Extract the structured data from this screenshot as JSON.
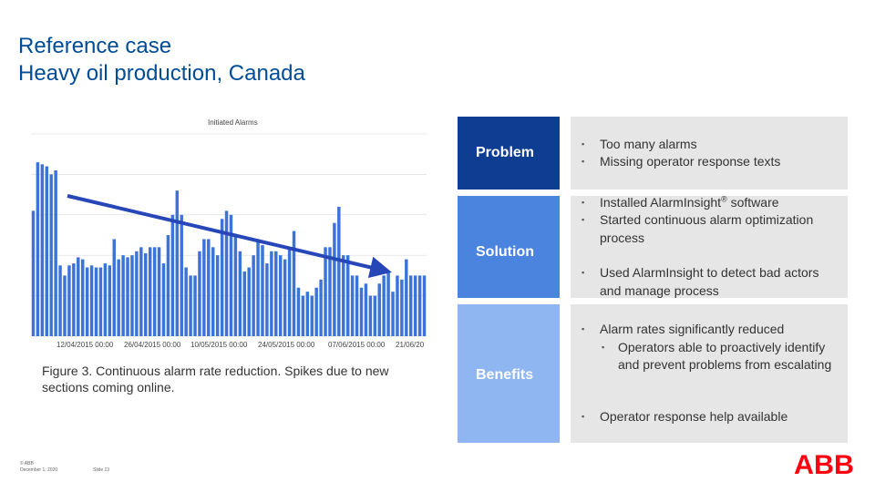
{
  "title": {
    "line1": "Reference case",
    "line2": "Heavy oil production, Canada"
  },
  "chart_data": {
    "type": "bar",
    "title": "Initiated Alarms",
    "tick_labels": [
      "12/04/2015 00:00",
      "26/04/2015 00:00",
      "10/05/2015 00:00",
      "24/05/2015 00:00",
      "07/06/2015 00:00",
      "21/06/20"
    ],
    "values": [
      62,
      86,
      85,
      84,
      80,
      82,
      35,
      30,
      35,
      36,
      39,
      38,
      34,
      35,
      34,
      34,
      36,
      35,
      48,
      38,
      40,
      39,
      40,
      42,
      44,
      41,
      44,
      44,
      44,
      36,
      50,
      60,
      72,
      60,
      34,
      30,
      30,
      42,
      48,
      48,
      44,
      40,
      58,
      62,
      60,
      50,
      42,
      32,
      34,
      40,
      48,
      45,
      36,
      42,
      42,
      40,
      38,
      44,
      52,
      24,
      20,
      22,
      20,
      24,
      28,
      44,
      44,
      56,
      64,
      40,
      40,
      30,
      30,
      24,
      26,
      20,
      20,
      26,
      30,
      32,
      22,
      30,
      28,
      38,
      30,
      30,
      30,
      30
    ],
    "ylim": [
      0,
      100
    ],
    "colors": {
      "bar": "#3b73d9",
      "trend": "#2747b8",
      "grid": "#d8d8d8"
    }
  },
  "caption": "Figure 3. Continuous alarm rate reduction. Spikes due to new sections coming online.",
  "rows": [
    {
      "label": "Problem",
      "items": [
        "Too many alarms",
        "Missing operator response texts"
      ]
    },
    {
      "label": "Solution",
      "item1": "Installed AlarmInsight",
      "item1_sup": "®",
      "item1_tail": " software",
      "item2": "Started continuous alarm optimization process",
      "item3": "Used AlarmInsight to detect bad actors and manage process"
    },
    {
      "label": "Benefits",
      "item1": "Alarm rates significantly reduced",
      "sub1": "Operators able to proactively identify and prevent problems from escalating",
      "item2": "Operator response help available"
    }
  ],
  "colors": {
    "problem": "#0e3d91",
    "solution": "#4b84df",
    "benefits": "#8fb6f0",
    "title": "#004c97",
    "abb_red": "#ff000f"
  },
  "footer": {
    "copyright": "© ABB",
    "date": "December 1, 2020",
    "slide": "Slide 13"
  },
  "logo_text": "ABB"
}
